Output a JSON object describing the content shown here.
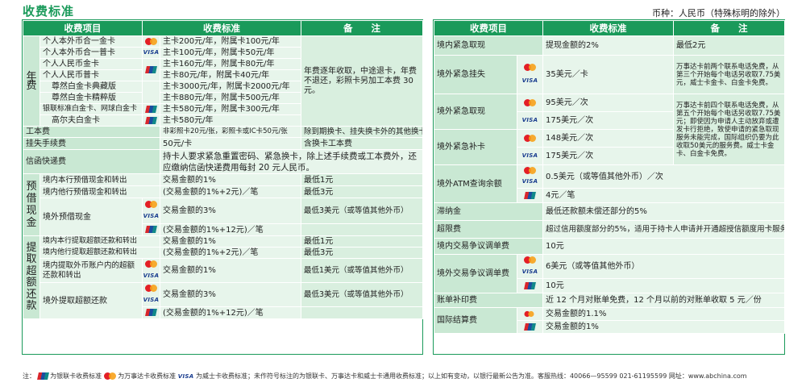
{
  "header": {
    "title": "收费标准",
    "currency": "币种：人民币（特殊标明的除外）"
  },
  "left": {
    "headers": [
      "收费项目",
      "收费标准",
      "备　　注"
    ],
    "annual_fee": {
      "label": "年费",
      "rows": [
        {
          "item": "个人本外币合一金卡",
          "icon": "mastercard-icon",
          "std": "主卡200元/年，附属卡100元/年"
        },
        {
          "item": "个人本外币合一普卡",
          "icon": "visa-icon",
          "std": "主卡100元/年，附属卡50元/年"
        },
        {
          "item": "个人人民币金卡",
          "icon": "unionpay-icon",
          "std": "主卡160元/年，附属卡80元/年"
        },
        {
          "item": "个人人民币普卡",
          "icon": "",
          "std": "主卡80元/年，附属卡40元/年"
        },
        {
          "item": "尊然白金卡典藏版",
          "icon": "",
          "std": "主卡3000元/年，附属卡2000元/年"
        },
        {
          "item": "尊然白金卡精粹版",
          "icon": "",
          "std": "主卡880元/年，附属卡500元/年"
        },
        {
          "item": "银联标准白金卡、网球白金卡",
          "icon": "unionpay-icon",
          "std": "主卡580元/年，附属卡300元/年"
        },
        {
          "item": "高尔夫白金卡",
          "icon": "unionpay-icon",
          "std": "主卡580元/年"
        }
      ],
      "note": "年费逐年收取，中途退卡，年费不退还，彩照卡另加工本费 30 元。"
    },
    "card_fee": {
      "item": "工本费",
      "std": "非彩照卡20元/张，彩照卡或IC卡50元/张",
      "note": "除到期换卡、挂失换卡外的其他换卡"
    },
    "loss_fee": {
      "item": "挂失手续费",
      "std": "50元/卡",
      "note": "含换卡工本费"
    },
    "express": {
      "item": "信函快递费",
      "std": "持卡人要求紧急重置密码、紧急换卡，除上述手续费或工本费外，还应缴纳信函快递费用每封 20 元人民币。"
    },
    "cash_advance": {
      "label": "预借现金",
      "rows": [
        {
          "item": "境内本行预借现金和转出",
          "std": "交易金额的1%",
          "note": "最低1元"
        },
        {
          "item": "境内他行预借现金和转出",
          "std": "(交易金额的1%+2元)／笔",
          "note": "最低3元"
        },
        {
          "item": "境外预借现金",
          "std": "交易金额的3%",
          "note": "最低3美元（或等值其他外币）"
        },
        {
          "item": "",
          "std": "(交易金额的1%+12元)／笔",
          "note": ""
        }
      ]
    },
    "overpay": {
      "label": "提取超额还款",
      "rows": [
        {
          "item": "境内本行提取超额还款和转出",
          "std": "交易金额的1%",
          "note": "最低1元"
        },
        {
          "item": "境内他行提取超额还款和转出",
          "std": "(交易金额的1%+2元)／笔",
          "note": "最低3元"
        },
        {
          "item": "境内提取外币账户内的超额还款和转出",
          "std": "交易金额的1%",
          "note": "最低1美元（或等值其他外币）"
        },
        {
          "item": "境外提取超额还款",
          "std": "交易金额的3%",
          "note": "最低3美元（或等值其他外币）"
        },
        {
          "item": "",
          "std": "(交易金额的1%+12元)／笔",
          "note": ""
        }
      ]
    }
  },
  "right": {
    "headers": [
      "收费项目",
      "收费标准",
      "备　　注"
    ],
    "rows": {
      "emerg_cash_dom": {
        "item": "境内紧急取现",
        "std": "提现金额的2%",
        "note": "最低2元"
      },
      "emerg_loss_abroad": {
        "item": "境外紧急挂失",
        "std": "35美元／卡",
        "note": "万事达卡前两个联系电话免费，从第三个开始每个电话另收取7.75美元，威士卡金卡、白金卡免费。"
      },
      "emerg_cash_abroad": {
        "item": "境外紧急取现",
        "std1": "95美元／次",
        "std2": "175美元／次"
      },
      "emerg_repl_abroad": {
        "item": "境外紧急补卡",
        "std1": "148美元／次",
        "std2": "175美元／次"
      },
      "emerg_note": "万事达卡前四个联系电话免费，从第五个开始每个电话另收取7.75美元；即使因为申请人主动放弃或遭发卡行拒绝，致使申请的紧急取现服务未能完成，国际组织仍要为此收取50美元的服务费。威士卡金卡、白金卡免费。",
      "atm_query": {
        "item": "境外ATM查询余额",
        "std1": "0.5美元（或等值其他外币）／次",
        "std2": "4元／笔"
      },
      "late_fee": {
        "item": "滞纳金",
        "std": "最低还款额未偿还部分的5%"
      },
      "overlimit": {
        "item": "超限费",
        "std": "超过信用额度部分的5%，适用于持卡人申请并开通超授信额度用卡服务"
      },
      "dispute_dom": {
        "item": "境内交易争议调单费",
        "std": "10元"
      },
      "dispute_abroad": {
        "item": "境外交易争议调单费",
        "std1": "6美元（或等值其他外币）",
        "std2": "10元"
      },
      "statement": {
        "item": "账单补印费",
        "std": "近 12 个月对账单免费，12 个月以前的对账单收取 5 元／份"
      },
      "settlement": {
        "item": "国际结算费",
        "std1": "交易金额的1.1%",
        "std2": "交易金额的1%"
      }
    }
  },
  "footer": {
    "prefix": "注：",
    "unionpay": "为银联卡收费标准",
    "mastercard": "为万事达卡收费标准",
    "visa_logo": "VISA",
    "visa": "为威士卡收费标准；未作符号标注的为银联卡、万事达卡和威士卡通用收费标准；以上如有变动，以银行最新公告为准。客服热线：40066—95599  021-61195599    网址：www.abchina.com"
  },
  "colors": {
    "brand": "#1a9a5a",
    "light": "#e7f5eb",
    "mid": "#c9e8d3"
  }
}
